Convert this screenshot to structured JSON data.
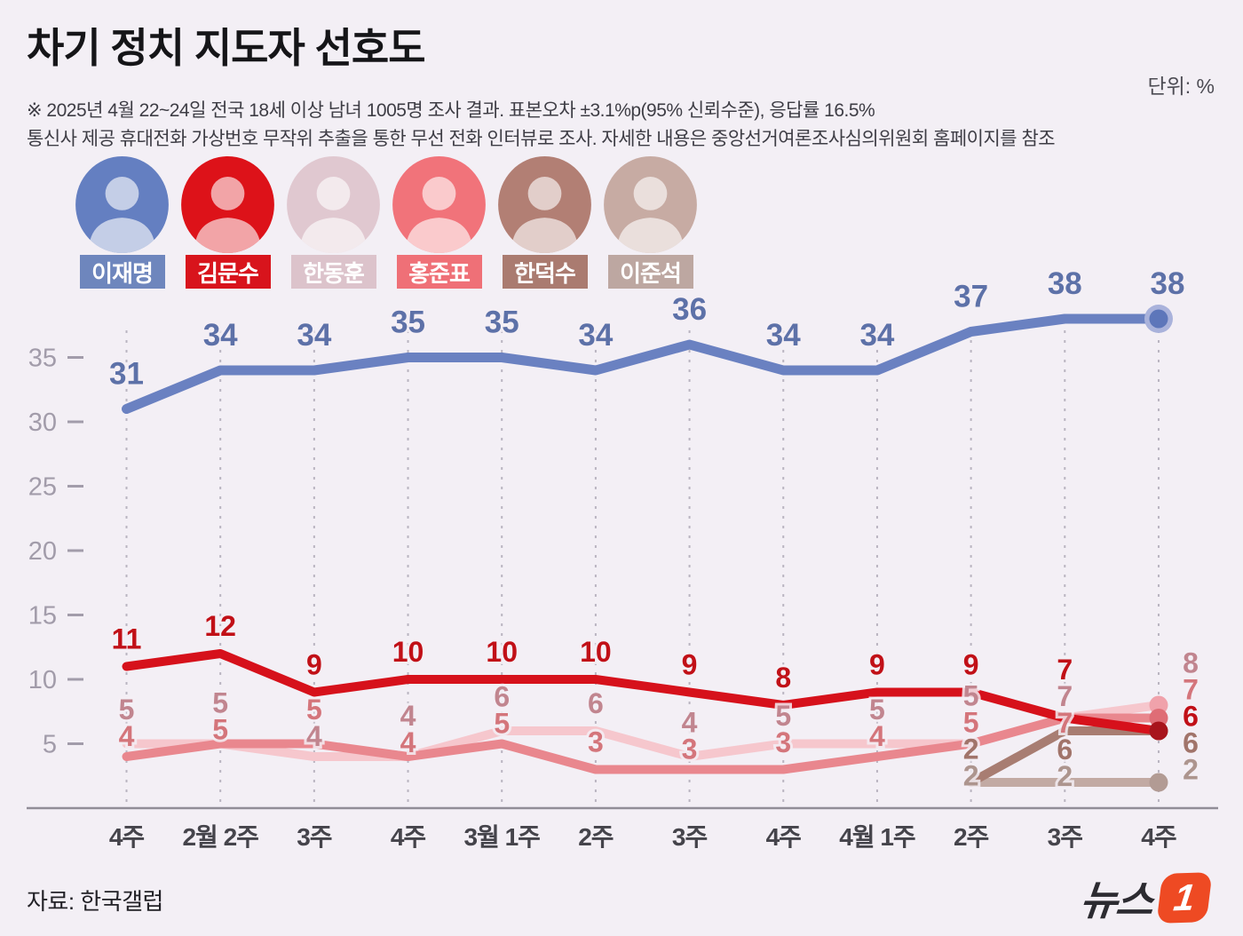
{
  "header": {
    "title": "차기 정치 지도자 선호도",
    "unit_label": "단위: %",
    "note_line1": "※ 2025년 4월 22~24일 전국 18세 이상 남녀 1005명 조사 결과. 표본오차 ±3.1%p(95% 신뢰수준), 응답률 16.5%",
    "note_line2": "통신사 제공 휴대전화 가상번호 무작위 추출을 통한 무선 전화 인터뷰로 조사. 자세한 내용은 중앙선거여론조사심의위원회 홈페이지를 참조"
  },
  "legend": {
    "people": [
      {
        "name": "이재명",
        "avatar_bg": "#647fc1",
        "label_bg": "#6e86bd"
      },
      {
        "name": "김문수",
        "avatar_bg": "#dd1219",
        "label_bg": "#d8141c"
      },
      {
        "name": "한동훈",
        "avatar_bg": "#e0c8d0",
        "label_bg": "#dcc3cb"
      },
      {
        "name": "홍준표",
        "avatar_bg": "#f1737a",
        "label_bg": "#ef7077"
      },
      {
        "name": "한덕수",
        "avatar_bg": "#b27f74",
        "label_bg": "#aa7b70"
      },
      {
        "name": "이준석",
        "avatar_bg": "#c7aba3",
        "label_bg": "#bda7a1"
      }
    ]
  },
  "chart_data": {
    "type": "line",
    "title": "차기 정치 지도자 선호도",
    "unit": "%",
    "xlabel": "",
    "ylabel": "%",
    "ylim": [
      0,
      40
    ],
    "yticks": [
      5,
      10,
      15,
      20,
      25,
      30,
      35
    ],
    "grid": "dashed-vertical",
    "legend_position": "top-avatars",
    "categories": [
      "4주",
      "2월 2주",
      "3주",
      "4주",
      "3월 1주",
      "2주",
      "3주",
      "4주",
      "4월 1주",
      "2주",
      "3주",
      "4주"
    ],
    "series": [
      {
        "name": "이재명",
        "color": "#6a81c1",
        "dot_color": "#5d76ba",
        "halo_color": "#a9b2db",
        "label_color": "#5d71a8",
        "values": [
          31,
          34,
          34,
          35,
          35,
          34,
          36,
          34,
          34,
          37,
          38,
          38
        ]
      },
      {
        "name": "김문수",
        "color": "#d6111b",
        "dot_color": "#a8141c",
        "label_color": "#c11017",
        "values": [
          11,
          12,
          9,
          10,
          10,
          10,
          9,
          8,
          9,
          9,
          7,
          6
        ]
      },
      {
        "name": "한동훈",
        "color": "#f6c7cd",
        "dot_color": "#f0a2ab",
        "label_color": "#c1858f",
        "values": [
          5,
          5,
          4,
          4,
          6,
          6,
          4,
          5,
          5,
          5,
          7,
          8
        ]
      },
      {
        "name": "홍준표",
        "color": "#e9878e",
        "dot_color": "#df6d76",
        "label_color": "#d4757b",
        "values": [
          4,
          5,
          5,
          4,
          5,
          3,
          3,
          3,
          4,
          5,
          7,
          7
        ]
      },
      {
        "name": "한덕수",
        "color": "#a87d72",
        "dot_color": "#99685d",
        "label_color": "#a1746a",
        "values": [
          null,
          null,
          null,
          null,
          null,
          null,
          null,
          null,
          null,
          2,
          6,
          6
        ]
      },
      {
        "name": "이준석",
        "color": "#c2aaa3",
        "dot_color": "#b29b94",
        "label_color": "#ad958e",
        "values": [
          null,
          null,
          null,
          null,
          null,
          null,
          null,
          null,
          null,
          2,
          2,
          2
        ]
      }
    ]
  },
  "footer": {
    "source_label": "자료: 한국갤럽",
    "logo_text": "뉴스",
    "logo_badge": "1",
    "logo_color": "#ee4a23"
  }
}
